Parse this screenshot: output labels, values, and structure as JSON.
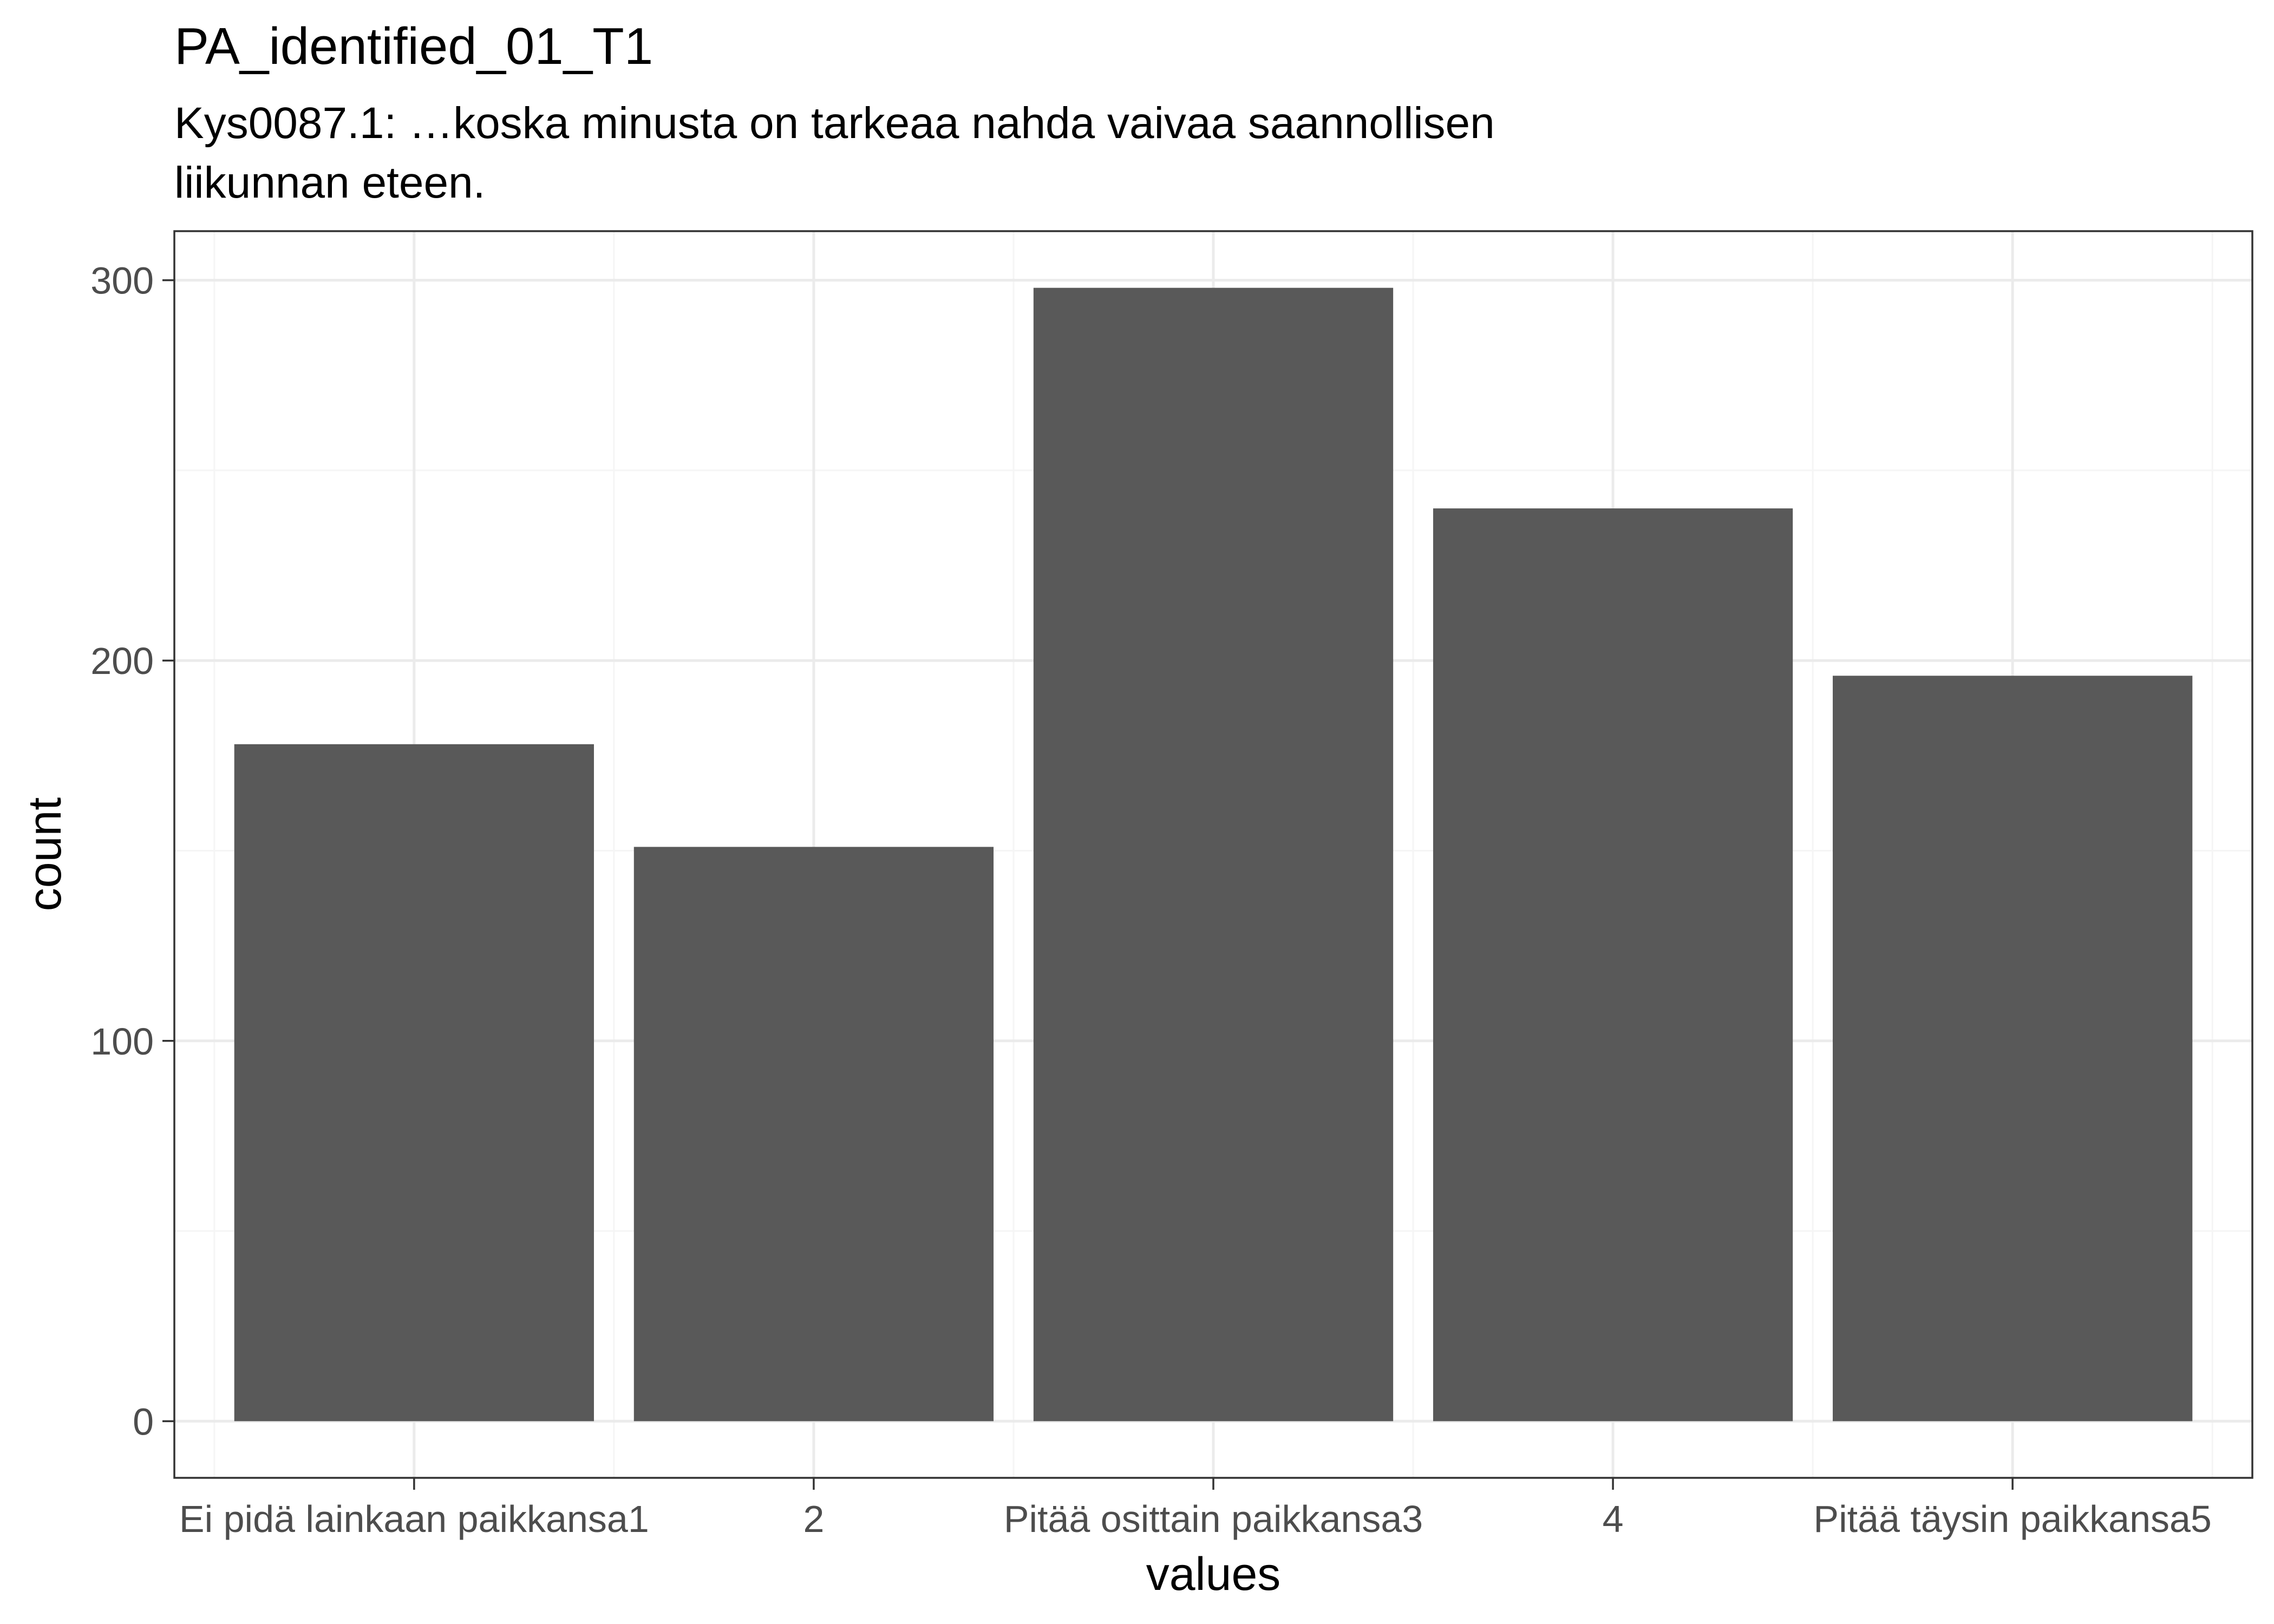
{
  "chart_data": {
    "type": "bar",
    "title": "PA_identified_01_T1",
    "subtitle_lines": [
      "Kys0087.1: …koska minusta on tarkeaa nahda vaivaa saannollisen",
      "liikunnan eteen."
    ],
    "xlabel": "values",
    "ylabel": "count",
    "categories": [
      "Ei pidä lainkaan paikkansa1",
      "2",
      "Pitää osittain paikkansa3",
      "4",
      "Pitää täysin paikkansa5"
    ],
    "values": [
      178,
      151,
      298,
      240,
      196
    ],
    "y_ticks": [
      0,
      100,
      200,
      300
    ],
    "y_tick_labels": [
      "0",
      "100",
      "200",
      "300"
    ],
    "ylim": [
      -14.9,
      312.9
    ],
    "grid": true,
    "legend": "none",
    "colors": {
      "bar": "#595959",
      "grid_major": "#ebebeb",
      "grid_minor": "#f5f5f5",
      "panel_border": "#333333",
      "tick_label": "#4d4d4d",
      "text": "#000000"
    }
  }
}
